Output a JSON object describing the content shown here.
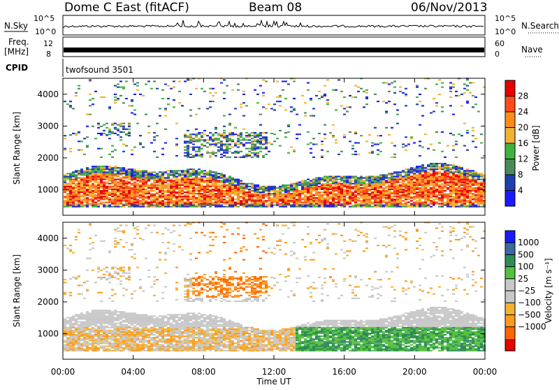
{
  "header": {
    "station": "Dome C East (fitACF)",
    "beam": "Beam 08",
    "date": "06/Nov/2013"
  },
  "nsky_panel": {
    "label": "N.Sky",
    "left_ticks": [
      "10^5",
      "10^0"
    ],
    "right_ticks": [
      "10^5",
      "10^0"
    ],
    "right_label": "N.Search"
  },
  "freq_panel": {
    "label_line1": "Freq.",
    "label_line2": "[MHz]",
    "left_ticks": [
      "12",
      "8"
    ],
    "right_ticks": [
      "60",
      "0"
    ],
    "right_label": "Nave"
  },
  "cpid_panel": {
    "label": "CPID",
    "program": "twofsound 3501"
  },
  "colors": {
    "power_scale": [
      "#1a1aff",
      "#1f3fb0",
      "#4a8a5a",
      "#3fb33f",
      "#f2b233",
      "#ff8c1a",
      "#ff4a1a",
      "#e60000"
    ],
    "velocity_scale": [
      "#e60000",
      "#ff6600",
      "#ff9a1a",
      "#f2b233",
      "#c8c8c8",
      "#c8c8c8",
      "#55c040",
      "#2e8b57",
      "#3a6aa0",
      "#1a1aff"
    ]
  },
  "chart_data": [
    {
      "type": "heatmap",
      "title": "Power",
      "xlabel": "Time UT",
      "ylabel": "Slant Range [km]",
      "x_range": [
        "00:00",
        "00:00"
      ],
      "x_ticks": [
        "00:00",
        "04:00",
        "08:00",
        "12:00",
        "16:00",
        "20:00",
        "00:00"
      ],
      "y_ticks": [
        "1000",
        "2000",
        "3000",
        "4000"
      ],
      "ylim": [
        200,
        4500
      ],
      "colorbar": {
        "label": "Power [dB]",
        "ticks": [
          "4",
          "8",
          "12",
          "16",
          "20",
          "24",
          "28"
        ]
      }
    },
    {
      "type": "heatmap",
      "title": "Velocity",
      "xlabel": "Time UT",
      "ylabel": "Slant Range [km]",
      "x_range": [
        "00:00",
        "00:00"
      ],
      "x_ticks": [
        "00:00",
        "04:00",
        "08:00",
        "12:00",
        "16:00",
        "20:00",
        "00:00"
      ],
      "y_ticks": [
        "1000",
        "2000",
        "3000",
        "4000"
      ],
      "ylim": [
        200,
        4500
      ],
      "colorbar": {
        "label": "Velocity [m s⁻¹]",
        "ticks": [
          "1000",
          "500",
          "100",
          "25",
          "−25",
          "−100",
          "−500",
          "−1000"
        ]
      }
    }
  ]
}
